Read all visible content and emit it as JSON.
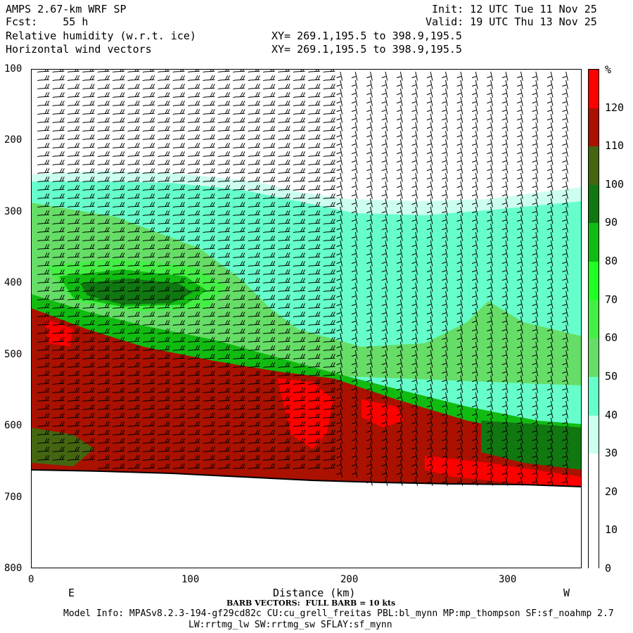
{
  "header": {
    "model": "AMPS 2.67-km WRF SP",
    "fcst": "Fcst:    55 h",
    "field1": "Relative humidity (w.r.t. ice)",
    "field2": "Horizontal wind vectors",
    "init": "Init: 12 UTC Tue 11 Nov 25",
    "valid": "Valid: 19 UTC Thu 13 Nov 25",
    "xy1": "XY= 269.1,195.5 to 398.9,195.5",
    "xy2": "XY= 269.1,195.5 to 398.9,195.5"
  },
  "footer": {
    "barb_note": "BARB VECTORS:  FULL BARB = 10 kts",
    "model_info_1": "Model Info: MPASv8.2.3-194-gf29cd82c CU:cu_grell_freitas PBL:bl_mynn MP:mp_thompson SF:sf_noahmp 2.7",
    "model_info_2": "LW:rrtmg_lw SW:rrtmg_sw SFLAY:sf_mynn"
  },
  "chart_data": {
    "type": "heatmap",
    "xlabel": "Distance (km)",
    "x_ticks": [
      0,
      100,
      200,
      300
    ],
    "xlim": [
      0,
      347
    ],
    "y_ticks": [
      100,
      200,
      300,
      400,
      500,
      600,
      700,
      800
    ],
    "ylim": [
      800,
      100
    ],
    "direction_left": "E",
    "direction_right": "W",
    "colorbar": {
      "unit": "%",
      "levels": [
        0,
        10,
        20,
        30,
        40,
        50,
        60,
        70,
        80,
        90,
        100,
        110,
        120
      ],
      "colors": [
        "#ffffff",
        "#ffffff",
        "#ffffff",
        "#ccfff0",
        "#66ffcc",
        "#66dd66",
        "#44ee44",
        "#22ff22",
        "#11bb11",
        "#117711",
        "#446611",
        "#aa1100",
        "#ff0000"
      ]
    },
    "terrain_pressure": [
      [
        0,
        668
      ],
      [
        50,
        670
      ],
      [
        100,
        673
      ],
      [
        150,
        677
      ],
      [
        200,
        681
      ],
      [
        250,
        684
      ],
      [
        300,
        686
      ],
      [
        347,
        689
      ]
    ],
    "wind_barbs": "full barbs throughout the column, westerly flow above ~450 hPa, stronger barbs near surface"
  }
}
